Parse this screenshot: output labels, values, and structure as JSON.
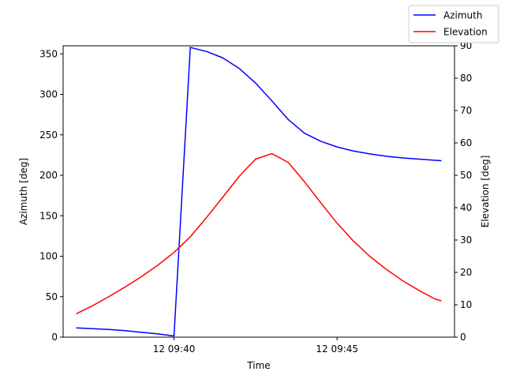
{
  "chart_data": {
    "type": "line",
    "xlabel": "Time",
    "ylabel_left": "Azimuth [deg]",
    "ylabel_right": "Elevation [deg]",
    "x_range_minutes": [
      36.6,
      48.6
    ],
    "x_ticks": [
      {
        "minute": 40,
        "label": "12 09:40"
      },
      {
        "minute": 45,
        "label": "12 09:45"
      }
    ],
    "ylim_left": [
      0,
      360
    ],
    "yticks_left": [
      0,
      50,
      100,
      150,
      200,
      250,
      300,
      350
    ],
    "ylim_right": [
      0,
      90
    ],
    "yticks_right": [
      0,
      10,
      20,
      30,
      40,
      50,
      60,
      70,
      80,
      90
    ],
    "grid": false,
    "legend_position": "top-right",
    "series": [
      {
        "name": "Azimuth",
        "color": "#0000ff",
        "axis": "left",
        "minutes": [
          37.0,
          37.5,
          38.0,
          38.5,
          39.0,
          39.5,
          40.0,
          40.5,
          41.0,
          41.5,
          42.0,
          42.5,
          43.0,
          43.5,
          44.0,
          44.5,
          45.0,
          45.5,
          46.0,
          46.5,
          47.0,
          47.5,
          48.0,
          48.2
        ],
        "values": [
          11.5,
          10.5,
          9.5,
          8,
          6,
          4,
          1.5,
          358,
          353,
          345,
          332,
          314,
          292,
          269,
          252,
          242,
          235,
          230,
          226.5,
          223.5,
          221.5,
          220,
          218.5,
          218
        ]
      },
      {
        "name": "Elevation",
        "color": "#ff0000",
        "axis": "right",
        "minutes": [
          37.0,
          37.5,
          38.0,
          38.5,
          39.0,
          39.5,
          40.0,
          40.5,
          41.0,
          41.5,
          42.0,
          42.5,
          43.0,
          43.5,
          44.0,
          44.5,
          45.0,
          45.5,
          46.0,
          46.5,
          47.0,
          47.5,
          48.0,
          48.2
        ],
        "values": [
          7.2,
          9.7,
          12.5,
          15.5,
          18.7,
          22.2,
          26.2,
          31,
          37,
          43.3,
          49.7,
          55,
          56.7,
          54,
          48,
          41.5,
          35.2,
          29.7,
          25,
          21,
          17.5,
          14.5,
          11.8,
          11.2
        ]
      }
    ]
  }
}
